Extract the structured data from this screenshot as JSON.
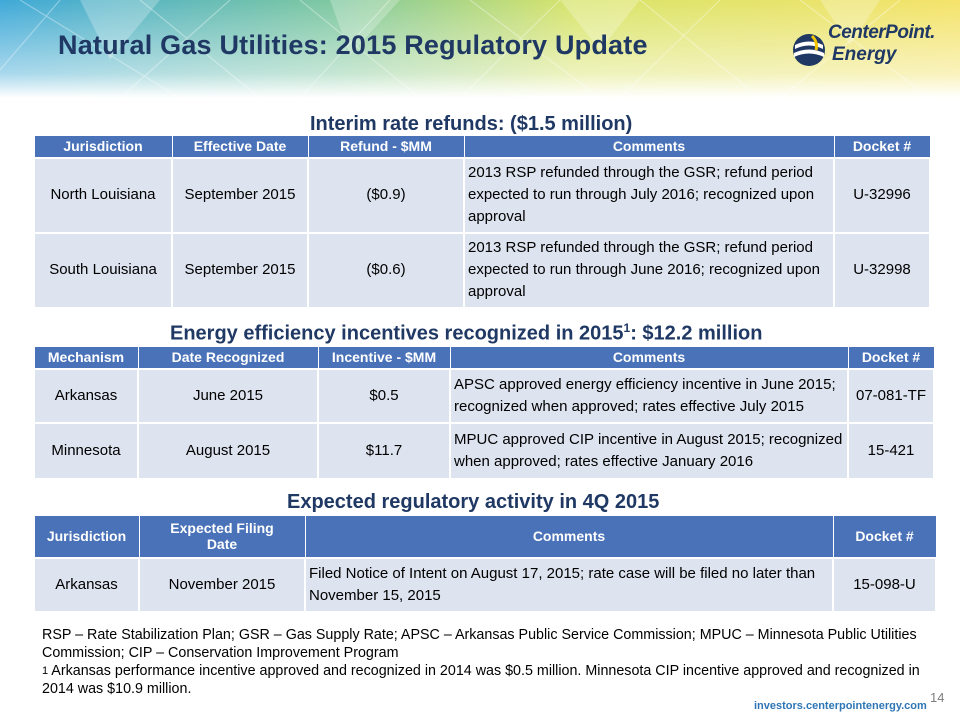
{
  "header": {
    "title": "Natural Gas Utilities:  2015 Regulatory Update",
    "logo_line1": "CenterPoint.",
    "logo_line2": "Energy"
  },
  "colors": {
    "title": "#1f3864",
    "table_header_bg": "#4a72b8",
    "table_cell_bg": "#dde3ef",
    "footer_url": "#2e75b6"
  },
  "refunds": {
    "heading": "Interim rate refunds: ($1.5 million)",
    "columns": [
      "Jurisdiction",
      "Effective Date",
      "Refund - $MM",
      "Comments",
      "Docket #"
    ],
    "rows": [
      [
        "North Louisiana",
        "September 2015",
        "($0.9)",
        "2013 RSP refunded through the GSR; refund period expected to run through July 2016; recognized upon approval",
        "U-32996"
      ],
      [
        "South Louisiana",
        "September 2015",
        "($0.6)",
        "2013 RSP refunded through the GSR; refund period expected to run through June 2016; recognized upon approval",
        "U-32998"
      ]
    ]
  },
  "efficiency": {
    "heading_pre": "Energy efficiency incentives recognized in 2015",
    "heading_sup": "1",
    "heading_post": ": $12.2 million",
    "columns": [
      "Mechanism",
      "Date Recognized",
      "Incentive - $MM",
      "Comments",
      "Docket #"
    ],
    "rows": [
      [
        "Arkansas",
        "June 2015",
        "$0.5",
        "APSC approved energy efficiency incentive in June 2015; recognized when approved; rates effective July 2015",
        "07-081-TF"
      ],
      [
        "Minnesota",
        "August 2015",
        "$11.7",
        "MPUC approved CIP incentive in August 2015; recognized when approved; rates effective January 2016",
        "15-421"
      ]
    ]
  },
  "expected": {
    "heading": "Expected regulatory activity in 4Q 2015",
    "columns": [
      "Jurisdiction",
      "Expected Filing Date",
      "Comments",
      "Docket #"
    ],
    "rows": [
      [
        "Arkansas",
        "November 2015",
        "Filed Notice of Intent on August 17, 2015; rate case will be filed no later than November 15, 2015",
        "15-098-U"
      ]
    ]
  },
  "notes": {
    "abbreviations": "RSP – Rate Stabilization Plan; GSR – Gas Supply Rate; APSC – Arkansas Public Service Commission; MPUC – Minnesota Public Utilities Commission; CIP – Conservation Improvement Program",
    "footnote_mark": "1",
    "footnote_text": " Arkansas performance incentive approved and recognized in 2014 was $0.5 million. Minnesota CIP incentive approved and recognized in 2014 was $10.9 million."
  },
  "footer": {
    "page_number": "14",
    "url": "investors.centerpointenergy.com"
  }
}
